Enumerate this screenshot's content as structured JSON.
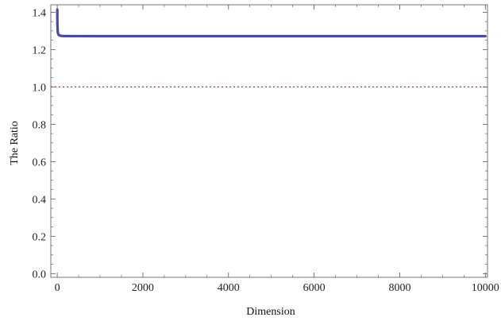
{
  "chart_data": {
    "type": "line",
    "title": "",
    "xlabel": "Dimension",
    "ylabel": "The Ratio",
    "xlim": [
      -150,
      10050
    ],
    "ylim": [
      -0.02,
      1.44
    ],
    "x_ticks": [
      0,
      2000,
      4000,
      6000,
      8000,
      10000
    ],
    "x_tick_labels": [
      "0",
      "2000",
      "4000",
      "6000",
      "8000",
      "10000"
    ],
    "y_ticks": [
      0.0,
      0.2,
      0.4,
      0.6,
      0.8,
      1.0,
      1.2,
      1.4
    ],
    "y_tick_labels": [
      "0.0",
      "0.2",
      "0.4",
      "0.6",
      "0.8",
      "1.0",
      "1.2",
      "1.4"
    ],
    "grid": false,
    "series": [
      {
        "color": "#4b4b9a",
        "style": "solid",
        "x": [
          1,
          3,
          5,
          8,
          12,
          20,
          30,
          50,
          80,
          120,
          200,
          400,
          1000,
          2000,
          4000,
          6000,
          8000,
          10000
        ],
        "y": [
          1.414,
          1.36,
          1.33,
          1.31,
          1.295,
          1.285,
          1.28,
          1.276,
          1.274,
          1.273,
          1.2725,
          1.2722,
          1.272,
          1.272,
          1.272,
          1.272,
          1.272,
          1.272
        ]
      },
      {
        "color": "#9a3a4a",
        "style": "dotted",
        "x": [
          -150,
          10050
        ],
        "y": [
          1.0,
          1.0
        ]
      }
    ]
  }
}
